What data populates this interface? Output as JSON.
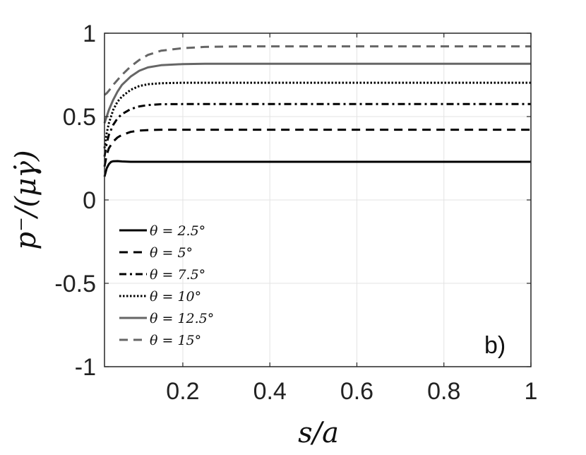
{
  "chart_data": {
    "type": "line",
    "title": "",
    "xlabel": "s/a",
    "ylabel": "p⁻/(μγ̇)",
    "xlim": [
      0.02,
      1
    ],
    "ylim": [
      -1,
      1
    ],
    "xticks": [
      0.2,
      0.4,
      0.6,
      0.8,
      1
    ],
    "xtick_labels": [
      "0.2",
      "0.4",
      "0.6",
      "0.8",
      "1"
    ],
    "yticks": [
      -1,
      -0.5,
      0,
      0.5,
      1
    ],
    "ytick_labels": [
      "-1",
      "-0.5",
      "0",
      "0.5",
      "1"
    ],
    "grid": true,
    "legend_position": "lower-left",
    "panel_label": "b)",
    "series": [
      {
        "name": "θ = 2.5°",
        "style": "solid",
        "color": "#000000",
        "x": [
          0.02,
          0.025,
          0.03,
          0.035,
          0.04,
          0.05,
          0.06,
          0.08,
          0.1,
          0.15,
          0.2,
          0.3,
          0.5,
          0.7,
          1.0
        ],
        "y": [
          0.14,
          0.19,
          0.215,
          0.228,
          0.232,
          0.233,
          0.231,
          0.229,
          0.229,
          0.229,
          0.229,
          0.229,
          0.229,
          0.229,
          0.229
        ]
      },
      {
        "name": "θ = 5°",
        "style": "dashed",
        "color": "#000000",
        "x": [
          0.02,
          0.025,
          0.03,
          0.04,
          0.05,
          0.06,
          0.08,
          0.1,
          0.12,
          0.15,
          0.2,
          0.3,
          0.5,
          0.7,
          1.0
        ],
        "y": [
          0.2,
          0.27,
          0.31,
          0.35,
          0.375,
          0.39,
          0.408,
          0.416,
          0.419,
          0.421,
          0.421,
          0.421,
          0.421,
          0.421,
          0.421
        ]
      },
      {
        "name": "θ = 7.5°",
        "style": "dashdot",
        "color": "#000000",
        "x": [
          0.02,
          0.025,
          0.03,
          0.04,
          0.05,
          0.06,
          0.08,
          0.1,
          0.12,
          0.15,
          0.2,
          0.3,
          0.5,
          0.7,
          1.0
        ],
        "y": [
          0.26,
          0.34,
          0.39,
          0.45,
          0.49,
          0.515,
          0.545,
          0.561,
          0.569,
          0.574,
          0.575,
          0.575,
          0.575,
          0.575,
          0.575
        ]
      },
      {
        "name": "θ = 10°",
        "style": "dotted",
        "color": "#000000",
        "x": [
          0.02,
          0.025,
          0.03,
          0.04,
          0.05,
          0.06,
          0.08,
          0.1,
          0.12,
          0.15,
          0.2,
          0.3,
          0.5,
          0.7,
          1.0
        ],
        "y": [
          0.31,
          0.4,
          0.46,
          0.54,
          0.59,
          0.62,
          0.66,
          0.683,
          0.694,
          0.7,
          0.703,
          0.703,
          0.703,
          0.703,
          0.703
        ]
      },
      {
        "name": "θ = 12.5°",
        "style": "solid",
        "color": "#666666",
        "x": [
          0.02,
          0.025,
          0.03,
          0.04,
          0.05,
          0.06,
          0.08,
          0.1,
          0.12,
          0.15,
          0.2,
          0.25,
          0.3,
          0.5,
          0.7,
          1.0
        ],
        "y": [
          0.46,
          0.5,
          0.54,
          0.6,
          0.65,
          0.69,
          0.74,
          0.775,
          0.795,
          0.808,
          0.815,
          0.817,
          0.817,
          0.817,
          0.817,
          0.817
        ]
      },
      {
        "name": "θ = 15°",
        "style": "dashed",
        "color": "#666666",
        "x": [
          0.02,
          0.025,
          0.03,
          0.04,
          0.05,
          0.06,
          0.08,
          0.1,
          0.12,
          0.15,
          0.2,
          0.25,
          0.3,
          0.35,
          0.5,
          0.7,
          1.0
        ],
        "y": [
          0.63,
          0.64,
          0.655,
          0.69,
          0.72,
          0.75,
          0.8,
          0.84,
          0.87,
          0.895,
          0.91,
          0.918,
          0.92,
          0.921,
          0.921,
          0.921,
          0.921
        ]
      }
    ]
  }
}
